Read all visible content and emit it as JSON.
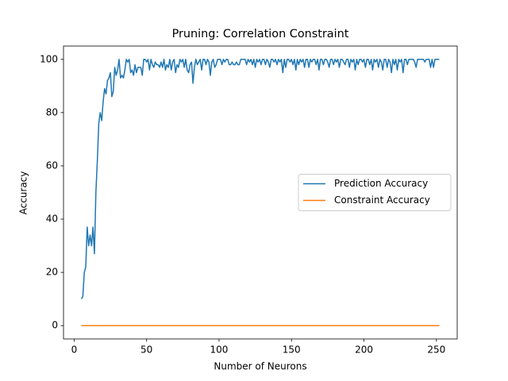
{
  "chart_data": {
    "type": "line",
    "title": "Pruning: Correlation Constraint",
    "x_label": "Number of Neurons",
    "y_label": "Accuracy",
    "x": [
      5,
      6,
      7,
      8,
      9,
      10,
      11,
      12,
      13,
      14,
      15,
      16,
      17,
      18,
      19,
      20,
      21,
      22,
      23,
      24,
      25,
      26,
      27,
      28,
      29,
      30,
      31,
      32,
      33,
      34,
      35,
      36,
      37,
      38,
      39,
      40,
      41,
      42,
      43,
      44,
      45,
      46,
      47,
      48,
      49,
      50,
      51,
      52,
      53,
      54,
      55,
      56,
      57,
      58,
      59,
      60,
      61,
      62,
      63,
      64,
      65,
      66,
      67,
      68,
      69,
      70,
      71,
      72,
      73,
      74,
      75,
      76,
      77,
      78,
      79,
      80,
      81,
      82,
      83,
      84,
      85,
      86,
      87,
      88,
      89,
      90,
      91,
      92,
      93,
      94,
      95,
      96,
      97,
      98,
      99,
      100,
      101,
      102,
      103,
      104,
      105,
      106,
      107,
      108,
      109,
      110,
      111,
      112,
      113,
      114,
      115,
      116,
      117,
      118,
      119,
      120,
      121,
      122,
      123,
      124,
      125,
      126,
      127,
      128,
      129,
      130,
      131,
      132,
      133,
      134,
      135,
      136,
      137,
      138,
      139,
      140,
      141,
      142,
      143,
      144,
      145,
      146,
      147,
      148,
      149,
      150,
      151,
      152,
      153,
      154,
      155,
      156,
      157,
      158,
      159,
      160,
      161,
      162,
      163,
      164,
      165,
      166,
      167,
      168,
      169,
      170,
      171,
      172,
      173,
      174,
      175,
      176,
      177,
      178,
      179,
      180,
      181,
      182,
      183,
      184,
      185,
      186,
      187,
      188,
      189,
      190,
      191,
      192,
      193,
      194,
      195,
      196,
      197,
      198,
      199,
      200,
      201,
      202,
      203,
      204,
      205,
      206,
      207,
      208,
      209,
      210,
      211,
      212,
      213,
      214,
      215,
      216,
      217,
      218,
      219,
      220,
      221,
      222,
      223,
      224,
      225,
      226,
      227,
      228,
      229,
      230,
      231,
      232,
      233,
      234,
      235,
      236,
      237,
      238,
      239,
      240,
      241,
      242,
      243,
      244,
      245,
      246,
      247,
      248,
      249,
      250,
      251,
      252
    ],
    "series": [
      {
        "name": "Prediction Accuracy",
        "color": "#1f77b4",
        "values": [
          10,
          11,
          20,
          22,
          37,
          30,
          34,
          30,
          37,
          27,
          50,
          62,
          76,
          80,
          77,
          84,
          89,
          87,
          92,
          93,
          95,
          86,
          88,
          97,
          94,
          96,
          100,
          93,
          94,
          93,
          96,
          100,
          99,
          100,
          95,
          96,
          94,
          98,
          95,
          97,
          97,
          97,
          94,
          100,
          100,
          99,
          100,
          96,
          100,
          98,
          97,
          99,
          98,
          98,
          97,
          99,
          97,
          100,
          96,
          98,
          97,
          100,
          96,
          99,
          100,
          95,
          98,
          97,
          100,
          99,
          100,
          97,
          100,
          96,
          95,
          98,
          99,
          91,
          97,
          100,
          98,
          99,
          100,
          96,
          100,
          100,
          98,
          100,
          99,
          94,
          99,
          100,
          97,
          98,
          100,
          100,
          100,
          98,
          100,
          99,
          100,
          100,
          98,
          98,
          99,
          98,
          98,
          99,
          98,
          98,
          100,
          100,
          100,
          100,
          98,
          100,
          99,
          100,
          98,
          100,
          97,
          100,
          99,
          100,
          98,
          100,
          100,
          98,
          100,
          99,
          97,
          100,
          100,
          99,
          100,
          98,
          100,
          99,
          100,
          95,
          100,
          97,
          100,
          100,
          99,
          100,
          98,
          100,
          96,
          100,
          98,
          100,
          99,
          100,
          97,
          100,
          100,
          97,
          100,
          99,
          100,
          100,
          98,
          100,
          96,
          100,
          100,
          98,
          100,
          100,
          99,
          97,
          100,
          100,
          98,
          100,
          99,
          100,
          97,
          100,
          100,
          99,
          98,
          100,
          100,
          97,
          100,
          99,
          100,
          96,
          100,
          98,
          100,
          100,
          99,
          100,
          97,
          100,
          100,
          98,
          100,
          96,
          100,
          99,
          100,
          97,
          100,
          99,
          96,
          100,
          100,
          97,
          100,
          99,
          95,
          100,
          98,
          100,
          96,
          100,
          99,
          100,
          95,
          100,
          100,
          98,
          100,
          100,
          100,
          100,
          99,
          97,
          100,
          100,
          100,
          100,
          100,
          99,
          100,
          100,
          100,
          97,
          100,
          97,
          100,
          100,
          100,
          100
        ]
      },
      {
        "name": "Constraint Accuracy",
        "color": "#ff7f0e",
        "values": [
          0,
          0,
          0,
          0,
          0,
          0,
          0,
          0,
          0,
          0,
          0,
          0,
          0,
          0,
          0,
          0,
          0,
          0,
          0,
          0,
          0,
          0,
          0,
          0,
          0,
          0,
          0,
          0,
          0,
          0,
          0,
          0,
          0,
          0,
          0,
          0,
          0,
          0,
          0,
          0,
          0,
          0,
          0,
          0,
          0,
          0,
          0,
          0,
          0,
          0,
          0,
          0,
          0,
          0,
          0,
          0,
          0,
          0,
          0,
          0,
          0,
          0,
          0,
          0,
          0,
          0,
          0,
          0,
          0,
          0,
          0,
          0,
          0,
          0,
          0,
          0,
          0,
          0,
          0,
          0,
          0,
          0,
          0,
          0,
          0,
          0,
          0,
          0,
          0,
          0,
          0,
          0,
          0,
          0,
          0,
          0,
          0,
          0,
          0,
          0,
          0,
          0,
          0,
          0,
          0,
          0,
          0,
          0,
          0,
          0,
          0,
          0,
          0,
          0,
          0,
          0,
          0,
          0,
          0,
          0,
          0,
          0,
          0,
          0,
          0,
          0,
          0,
          0,
          0,
          0,
          0,
          0,
          0,
          0,
          0,
          0,
          0,
          0,
          0,
          0,
          0,
          0,
          0,
          0,
          0,
          0,
          0,
          0,
          0,
          0,
          0,
          0,
          0,
          0,
          0,
          0,
          0,
          0,
          0,
          0,
          0,
          0,
          0,
          0,
          0,
          0,
          0,
          0,
          0,
          0,
          0,
          0,
          0,
          0,
          0,
          0,
          0,
          0,
          0,
          0,
          0,
          0,
          0,
          0,
          0,
          0,
          0,
          0,
          0,
          0,
          0,
          0,
          0,
          0,
          0,
          0,
          0,
          0,
          0,
          0,
          0,
          0,
          0,
          0,
          0,
          0,
          0,
          0,
          0,
          0,
          0,
          0,
          0,
          0,
          0,
          0,
          0,
          0,
          0,
          0,
          0,
          0,
          0,
          0,
          0,
          0,
          0,
          0,
          0,
          0,
          0,
          0,
          0,
          0,
          0,
          0,
          0,
          0,
          0,
          0,
          0,
          0,
          0,
          0,
          0,
          0,
          0,
          0
        ]
      }
    ],
    "xlim": [
      -7.35,
      264.35
    ],
    "xticks": [
      0,
      50,
      100,
      150,
      200,
      250
    ],
    "ylim": [
      -5,
      105
    ],
    "yticks": [
      0,
      20,
      40,
      60,
      80,
      100
    ],
    "grid": false,
    "legend": "center right"
  }
}
